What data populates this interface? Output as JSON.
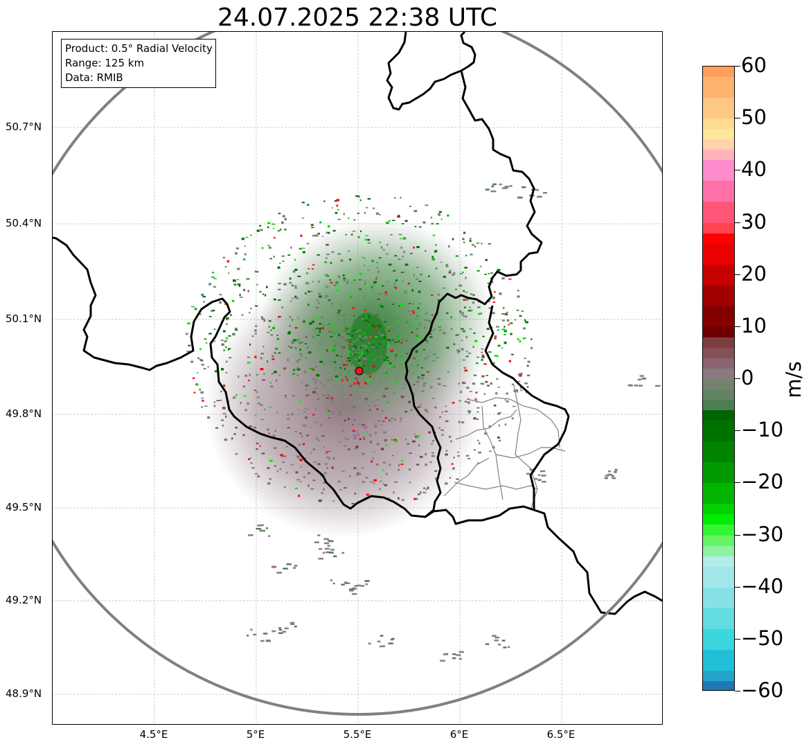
{
  "title": "24.07.2025 22:38 UTC",
  "info": {
    "product": "Product: 0.5° Radial Velocity",
    "range": "Range: 125 km",
    "source": "Data: RMIB"
  },
  "axes": {
    "lat_ticks": [
      "50.7°N",
      "50.4°N",
      "50.1°N",
      "49.8°N",
      "49.5°N",
      "49.2°N",
      "48.9°N"
    ],
    "lon_ticks": [
      "4.5°E",
      "5°E",
      "5.5°E",
      "6°E",
      "6.5°E"
    ]
  },
  "colorbar": {
    "unit": "m/s",
    "tick_labels": [
      "60",
      "50",
      "40",
      "30",
      "20",
      "10",
      "0",
      "−10",
      "−20",
      "−30",
      "−40",
      "−50",
      "−60"
    ],
    "range": [
      -60,
      60
    ],
    "bands": [
      {
        "from": 58,
        "to": 60,
        "color": "#fe9f5a"
      },
      {
        "from": 54,
        "to": 58,
        "color": "#feb46e"
      },
      {
        "from": 50,
        "to": 54,
        "color": "#fec783"
      },
      {
        "from": 48,
        "to": 50,
        "color": "#fedb8f"
      },
      {
        "from": 46,
        "to": 48,
        "color": "#ffe79a"
      },
      {
        "from": 44,
        "to": 46,
        "color": "#ffd3ad"
      },
      {
        "from": 42,
        "to": 44,
        "color": "#ffb3bd"
      },
      {
        "from": 38,
        "to": 42,
        "color": "#ff8ccc"
      },
      {
        "from": 34,
        "to": 38,
        "color": "#ff6fa8"
      },
      {
        "from": 30,
        "to": 34,
        "color": "#ff5577"
      },
      {
        "from": 28,
        "to": 30,
        "color": "#ff4450"
      },
      {
        "from": 26,
        "to": 28,
        "color": "#ff0000"
      },
      {
        "from": 22,
        "to": 26,
        "color": "#e90000"
      },
      {
        "from": 18,
        "to": 22,
        "color": "#c90000"
      },
      {
        "from": 14,
        "to": 18,
        "color": "#a00000"
      },
      {
        "from": 10,
        "to": 14,
        "color": "#820000"
      },
      {
        "from": 8,
        "to": 10,
        "color": "#6e0000"
      },
      {
        "from": 6,
        "to": 8,
        "color": "#7e3d40"
      },
      {
        "from": 4,
        "to": 6,
        "color": "#86505a"
      },
      {
        "from": 2,
        "to": 4,
        "color": "#8a6470"
      },
      {
        "from": 0,
        "to": 2,
        "color": "#8a7a80"
      },
      {
        "from": -2,
        "to": 0,
        "color": "#768270"
      },
      {
        "from": -4,
        "to": -2,
        "color": "#628464"
      },
      {
        "from": -6,
        "to": -4,
        "color": "#4f7d52"
      },
      {
        "from": -8,
        "to": -6,
        "color": "#006600"
      },
      {
        "from": -12,
        "to": -8,
        "color": "#007200"
      },
      {
        "from": -16,
        "to": -12,
        "color": "#008400"
      },
      {
        "from": -20,
        "to": -16,
        "color": "#009a00"
      },
      {
        "from": -24,
        "to": -20,
        "color": "#00b400"
      },
      {
        "from": -26,
        "to": -24,
        "color": "#00d200"
      },
      {
        "from": -28,
        "to": -26,
        "color": "#00ec00"
      },
      {
        "from": -30,
        "to": -28,
        "color": "#33f533"
      },
      {
        "from": -32,
        "to": -30,
        "color": "#66f466"
      },
      {
        "from": -34,
        "to": -32,
        "color": "#8ff2a0"
      },
      {
        "from": -36,
        "to": -34,
        "color": "#b4ecec"
      },
      {
        "from": -40,
        "to": -36,
        "color": "#a2e8ea"
      },
      {
        "from": -44,
        "to": -40,
        "color": "#86e2e6"
      },
      {
        "from": -48,
        "to": -44,
        "color": "#62dde2"
      },
      {
        "from": -52,
        "to": -48,
        "color": "#3cd6de"
      },
      {
        "from": -56,
        "to": -52,
        "color": "#22c0d8"
      },
      {
        "from": -58,
        "to": -56,
        "color": "#26a3cc"
      },
      {
        "from": -60,
        "to": -58,
        "color": "#1f77b4"
      }
    ]
  },
  "map": {
    "lon_range": [
      4.0,
      7.0
    ],
    "lat_range": [
      48.8,
      50.98
    ],
    "radar_site": {
      "lon": 5.505,
      "lat": 49.914,
      "color": "#e31a1c"
    },
    "range_ring_color": "#808080",
    "border_color": "#000000",
    "region_border_color": "#808080"
  }
}
